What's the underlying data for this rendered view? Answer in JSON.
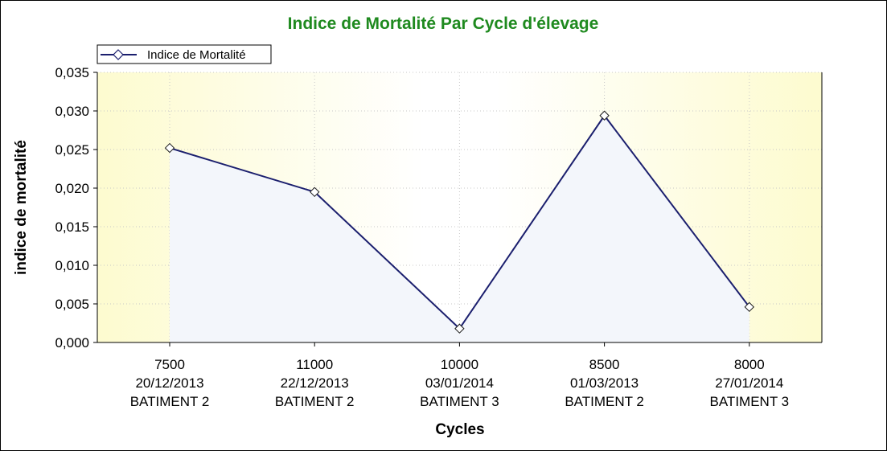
{
  "chart_data": {
    "type": "line",
    "title": "Indice de Mortalité Par Cycle d'élevage",
    "xlabel": "Cycles",
    "ylabel": "indice de mortalité",
    "ylim": [
      0,
      0.035
    ],
    "y_ticks": [
      "0,000",
      "0,005",
      "0,010",
      "0,015",
      "0,020",
      "0,025",
      "0,030",
      "0,035"
    ],
    "y_tick_values": [
      0,
      0.005,
      0.01,
      0.015,
      0.02,
      0.025,
      0.03,
      0.035
    ],
    "categories": [
      [
        "7500",
        "20/12/2013",
        "BATIMENT 2"
      ],
      [
        "11000",
        "22/12/2013",
        "BATIMENT 2"
      ],
      [
        "10000",
        "03/01/2014",
        "BATIMENT 3"
      ],
      [
        "8500",
        "01/03/2013",
        "BATIMENT 2"
      ],
      [
        "8000",
        "27/01/2014",
        "BATIMENT 3"
      ]
    ],
    "series": [
      {
        "name": "Indice de Mortalité",
        "values": [
          0.0252,
          0.0195,
          0.0018,
          0.0294,
          0.0046
        ],
        "color": "#1b1f6e",
        "marker": "diamond"
      }
    ],
    "grid": true,
    "legend": "top-left",
    "colors": {
      "title": "#1f8a1f",
      "plot_bg_edge": "#fdfbcf",
      "plot_bg_center": "#ffffff",
      "area_fill": "#f3f6fb",
      "grid": "#c8c8c8"
    }
  }
}
